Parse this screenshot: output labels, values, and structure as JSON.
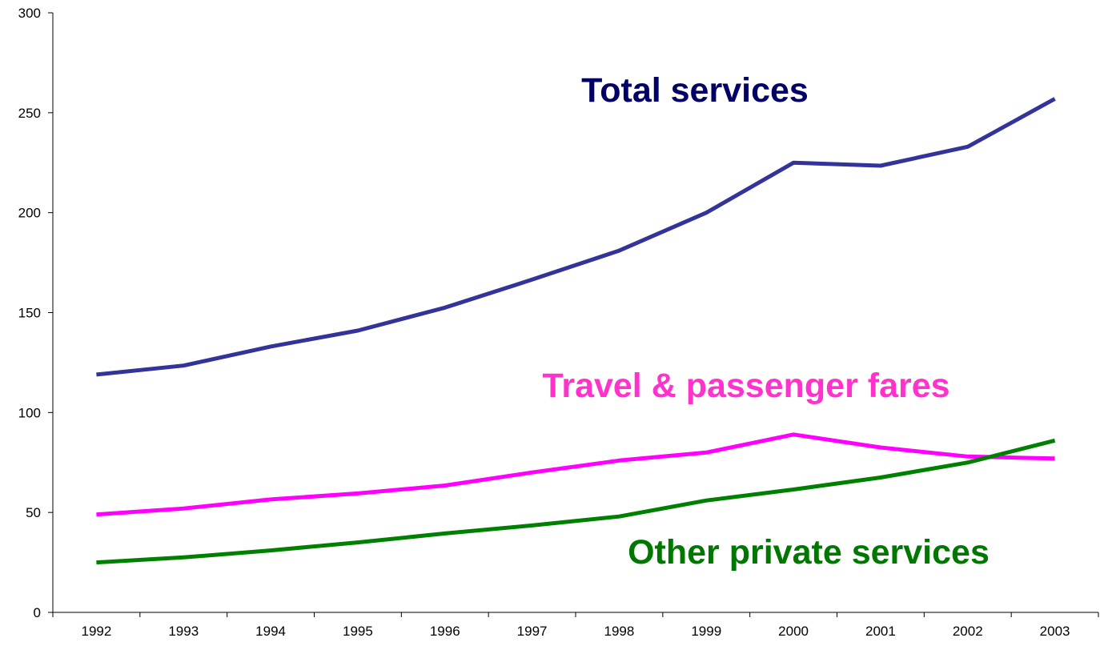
{
  "chart_data": {
    "type": "line",
    "title": "",
    "xlabel": "",
    "ylabel": "",
    "x": [
      "1992",
      "1993",
      "1994",
      "1995",
      "1996",
      "1997",
      "1998",
      "1999",
      "2000",
      "2001",
      "2002",
      "2003"
    ],
    "ylim": [
      0,
      300
    ],
    "yticks": [
      "0",
      "50",
      "100",
      "150",
      "200",
      "250",
      "300"
    ],
    "grid": false,
    "legend": "none",
    "series": [
      {
        "name": "Total services",
        "color": "#333399",
        "label_color": "#000066",
        "values": [
          119,
          123.5,
          133,
          141,
          152.5,
          166.5,
          181,
          200,
          225,
          223.5,
          233,
          257
        ]
      },
      {
        "name": "Travel & passenger fares",
        "color": "#ff00ff",
        "label_color": "#ff33cc",
        "values": [
          49,
          52,
          56.5,
          59.5,
          63.5,
          70,
          76,
          80,
          89,
          82.5,
          78,
          77
        ]
      },
      {
        "name": "Other private services",
        "color": "#008000",
        "label_color": "#007700",
        "values": [
          25,
          27.5,
          31,
          35,
          39.5,
          43.5,
          48,
          56,
          61.5,
          67.5,
          75,
          86
        ]
      }
    ]
  }
}
